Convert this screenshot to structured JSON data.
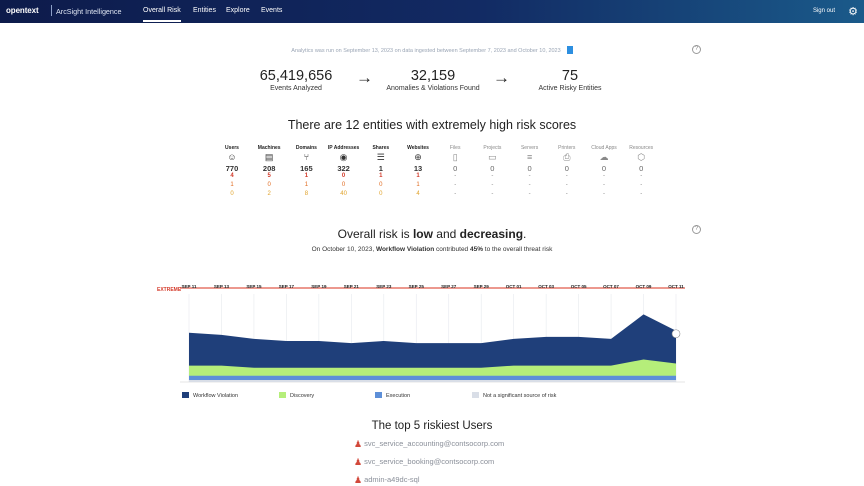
{
  "header": {
    "brand": "opentext",
    "product": "ArcSight Intelligence",
    "nav": [
      {
        "label": "Overall Risk",
        "active": true
      },
      {
        "label": "Entities",
        "active": false
      },
      {
        "label": "Explore",
        "active": false
      },
      {
        "label": "Events",
        "active": false
      }
    ],
    "signout": "Sign out",
    "settings_icon": "gear-icon"
  },
  "analytics_note": "Analytics was run on September 13, 2023 on data ingested between September 7, 2023 and October 10, 2023",
  "stats": [
    {
      "value": "65,419,656",
      "label": "Events Analyzed"
    },
    {
      "value": "32,159",
      "label": "Anomalies & Violations Found"
    },
    {
      "value": "75",
      "label": "Active Risky Entities"
    }
  ],
  "headline": "There are 12 entities with extremely high risk scores",
  "entities": [
    {
      "name": "Users",
      "icon": "user-icon",
      "total": "770",
      "r1": "4",
      "r2": "1",
      "r3": "0",
      "dim": false
    },
    {
      "name": "Machines",
      "icon": "machine-icon",
      "total": "208",
      "r1": "5",
      "r2": "0",
      "r3": "2",
      "dim": false
    },
    {
      "name": "Domains",
      "icon": "domain-icon",
      "total": "165",
      "r1": "1",
      "r2": "1",
      "r3": "8",
      "dim": false
    },
    {
      "name": "IP Addresses",
      "icon": "ip-icon",
      "total": "322",
      "r1": "0",
      "r2": "0",
      "r3": "40",
      "dim": false
    },
    {
      "name": "Shares",
      "icon": "share-icon",
      "total": "1",
      "r1": "1",
      "r2": "0",
      "r3": "0",
      "dim": false
    },
    {
      "name": "Websites",
      "icon": "globe-icon",
      "total": "13",
      "r1": "1",
      "r2": "1",
      "r3": "4",
      "dim": false
    },
    {
      "name": "Files",
      "icon": "file-icon",
      "total": "0",
      "r1": "-",
      "r2": "-",
      "r3": "-",
      "dim": true
    },
    {
      "name": "Projects",
      "icon": "folder-icon",
      "total": "0",
      "r1": "-",
      "r2": "-",
      "r3": "-",
      "dim": true
    },
    {
      "name": "Servers",
      "icon": "server-icon",
      "total": "0",
      "r1": "-",
      "r2": "-",
      "r3": "-",
      "dim": true
    },
    {
      "name": "Printers",
      "icon": "printer-icon",
      "total": "0",
      "r1": "-",
      "r2": "-",
      "r3": "-",
      "dim": true
    },
    {
      "name": "Cloud Apps",
      "icon": "cloud-icon",
      "total": "0",
      "r1": "-",
      "r2": "-",
      "r3": "-",
      "dim": true
    },
    {
      "name": "Resources",
      "icon": "cube-icon",
      "total": "0",
      "r1": "-",
      "r2": "-",
      "r3": "-",
      "dim": true
    }
  ],
  "risk": {
    "prefix": "Overall risk is ",
    "level": "low",
    "middle": " and ",
    "trend": "decreasing",
    "suffix": ".",
    "sub_prefix": "On October 10, 2023, ",
    "sub_source": "Workflow Violation",
    "sub_middle": " contributed ",
    "sub_pct": "45%",
    "sub_suffix": " to the overall threat risk"
  },
  "chart_data": {
    "type": "area",
    "y_top_label": "EXTREME",
    "x": [
      "SEP 11",
      "SEP 13",
      "SEP 15",
      "SEP 17",
      "SEP 19",
      "SEP 21",
      "SEP 23",
      "SEP 25",
      "SEP 27",
      "SEP 29",
      "OCT 01",
      "OCT 03",
      "OCT 05",
      "OCT 07",
      "OCT 09",
      "OCT 11"
    ],
    "series": [
      {
        "name": "Workflow Violation",
        "color": "#1f3f7a",
        "values": [
          16,
          15,
          14,
          13,
          13,
          12,
          13,
          12,
          12,
          12,
          13,
          14,
          14,
          13,
          22,
          16
        ]
      },
      {
        "name": "Discovery",
        "color": "#b5ee7a",
        "values": [
          5,
          5,
          4,
          4,
          4,
          4,
          4,
          4,
          4,
          4,
          5,
          5,
          5,
          5,
          8,
          6
        ]
      },
      {
        "name": "Execution",
        "color": "#5d8fd8",
        "values": [
          2,
          2,
          2,
          2,
          2,
          2,
          2,
          2,
          2,
          2,
          2,
          2,
          2,
          2,
          2,
          2
        ]
      },
      {
        "name": "Not a significant source of risk",
        "color": "#d9dee7",
        "values": [
          1,
          1,
          1,
          1,
          1,
          1,
          1,
          1,
          1,
          1,
          1,
          1,
          1,
          1,
          1,
          1
        ]
      }
    ]
  },
  "top5": {
    "title": "The top 5 riskiest Users",
    "users": [
      "svc_service_accounting@contsocorp.com",
      "svc_service_booking@contsocorp.com",
      "admin-a49dc-sql"
    ]
  }
}
